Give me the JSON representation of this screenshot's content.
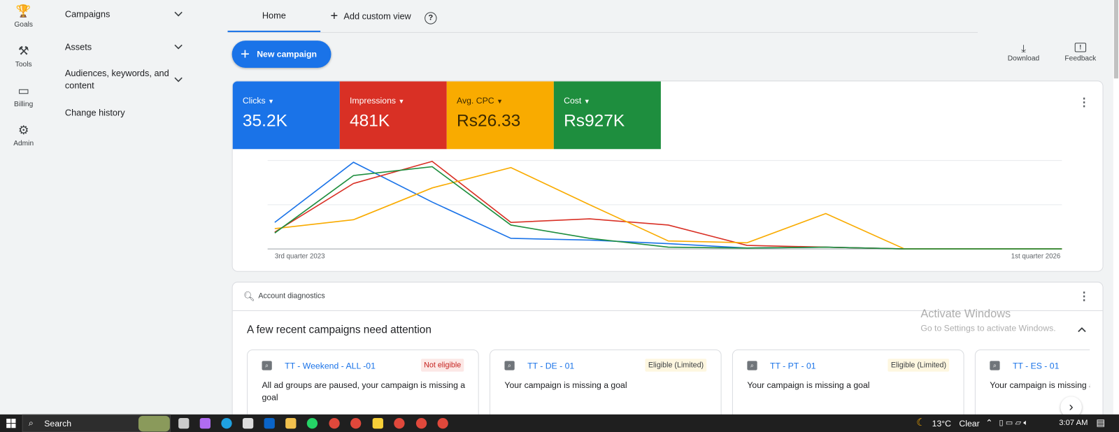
{
  "rail": [
    {
      "label": "Goals",
      "icon": "trophy-icon"
    },
    {
      "label": "Tools",
      "icon": "tools-icon"
    },
    {
      "label": "Billing",
      "icon": "credit-card-icon"
    },
    {
      "label": "Admin",
      "icon": "gear-icon"
    }
  ],
  "nav": [
    {
      "label": "Campaigns"
    },
    {
      "label": "Assets"
    },
    {
      "label": "Audiences, keywords, and content"
    },
    {
      "label": "Change history"
    }
  ],
  "tabs": {
    "home": "Home",
    "add_custom": "Add custom view"
  },
  "new_campaign": "New campaign",
  "actions": {
    "download": "Download",
    "feedback": "Feedback"
  },
  "metrics": [
    {
      "label": "Clicks",
      "value": "35.2K",
      "color": "#1a73e8"
    },
    {
      "label": "Impressions",
      "value": "481K",
      "color": "#d93025"
    },
    {
      "label": "Avg. CPC",
      "value": "Rs26.33",
      "color": "#f9ab00"
    },
    {
      "label": "Cost",
      "value": "Rs927K",
      "color": "#1e8e3e"
    }
  ],
  "chart_data": {
    "type": "line",
    "x_tick_labels": [
      "3rd quarter 2023",
      "1st quarter 2026"
    ],
    "x": [
      "Q3 2023",
      "Q4 2023",
      "Q1 2024",
      "Q2 2024",
      "Q3 2024",
      "Q4 2024",
      "Q1 2025",
      "Q2 2025",
      "Q3 2025",
      "Q4 2025",
      "Q1 2026"
    ],
    "y_scale": "relative (no axis labels shown), 0-100",
    "grid": true,
    "series": [
      {
        "name": "Clicks",
        "color": "#1a73e8",
        "values": [
          30,
          98,
          53,
          12,
          10,
          6,
          1,
          2,
          0,
          0,
          0
        ]
      },
      {
        "name": "Impressions",
        "color": "#d93025",
        "values": [
          19,
          74,
          99,
          30,
          34,
          27,
          4,
          2,
          0,
          0,
          0
        ]
      },
      {
        "name": "Avg. CPC",
        "color": "#f9ab00",
        "values": [
          23,
          33,
          69,
          92,
          50,
          9,
          7,
          40,
          0,
          0,
          0
        ]
      },
      {
        "name": "Cost",
        "color": "#1e8e3e",
        "values": [
          18,
          83,
          93,
          27,
          12,
          2,
          1,
          2,
          0,
          0,
          0
        ]
      }
    ]
  },
  "diagnostics": {
    "header": "Account diagnostics",
    "title": "A few recent campaigns need attention",
    "campaigns": [
      {
        "name": "TT - Weekend - ALL -01",
        "status": "Not eligible",
        "status_type": "error",
        "message": "All ad groups are paused, your campaign is missing a goal"
      },
      {
        "name": "TT - DE - 01",
        "status": "Eligible (Limited)",
        "status_type": "warning",
        "message": "Your campaign is missing a goal"
      },
      {
        "name": "TT - PT - 01",
        "status": "Eligible (Limited)",
        "status_type": "warning",
        "message": "Your campaign is missing a goal"
      },
      {
        "name": "TT - ES - 01",
        "status": "",
        "status_type": "",
        "message": "Your campaign is missing a goal"
      }
    ]
  },
  "watermark": {
    "line1": "Activate Windows",
    "line2": "Go to Settings to activate Windows."
  },
  "taskbar": {
    "search": "Search",
    "weather": "13°C",
    "weather_text": "Clear",
    "time": "3:07 AM"
  }
}
